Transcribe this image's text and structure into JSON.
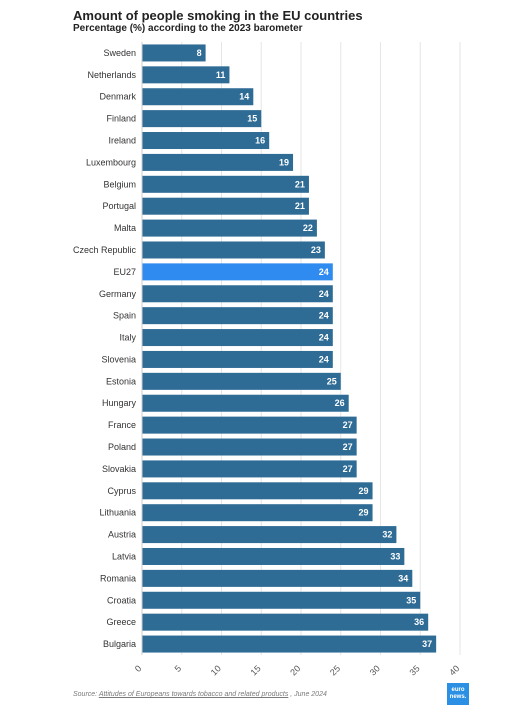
{
  "title": "Amount of people smoking in the EU countries",
  "subtitle": "Percentage (%) according to the 2023 barometer",
  "source": {
    "prefix": "Source: ",
    "link": "Attitudes of Europeans towards tobacco and related products",
    "suffix": " , June 2024"
  },
  "logo": {
    "line1": "euro",
    "line2": "news."
  },
  "colors": {
    "bar": "#2e6b95",
    "highlight": "#2f8bef",
    "grid": "#e6e6e6"
  },
  "chart_data": {
    "type": "bar",
    "orientation": "horizontal",
    "categories": [
      "Sweden",
      "Netherlands",
      "Denmark",
      "Finland",
      "Ireland",
      "Luxembourg",
      "Belgium",
      "Portugal",
      "Malta",
      "Czech Republic",
      "EU27",
      "Germany",
      "Spain",
      "Italy",
      "Slovenia",
      "Estonia",
      "Hungary",
      "France",
      "Poland",
      "Slovakia",
      "Cyprus",
      "Lithuania",
      "Austria",
      "Latvia",
      "Romania",
      "Croatia",
      "Greece",
      "Bulgaria"
    ],
    "values": [
      8,
      11,
      14,
      15,
      16,
      19,
      21,
      21,
      22,
      23,
      24,
      24,
      24,
      24,
      24,
      25,
      26,
      27,
      27,
      27,
      29,
      29,
      32,
      33,
      34,
      35,
      36,
      37
    ],
    "highlight": "EU27",
    "xlim": [
      0,
      40
    ],
    "xticks": [
      0,
      5,
      10,
      15,
      20,
      25,
      30,
      35,
      40
    ],
    "grid": true,
    "data_labels": true
  }
}
